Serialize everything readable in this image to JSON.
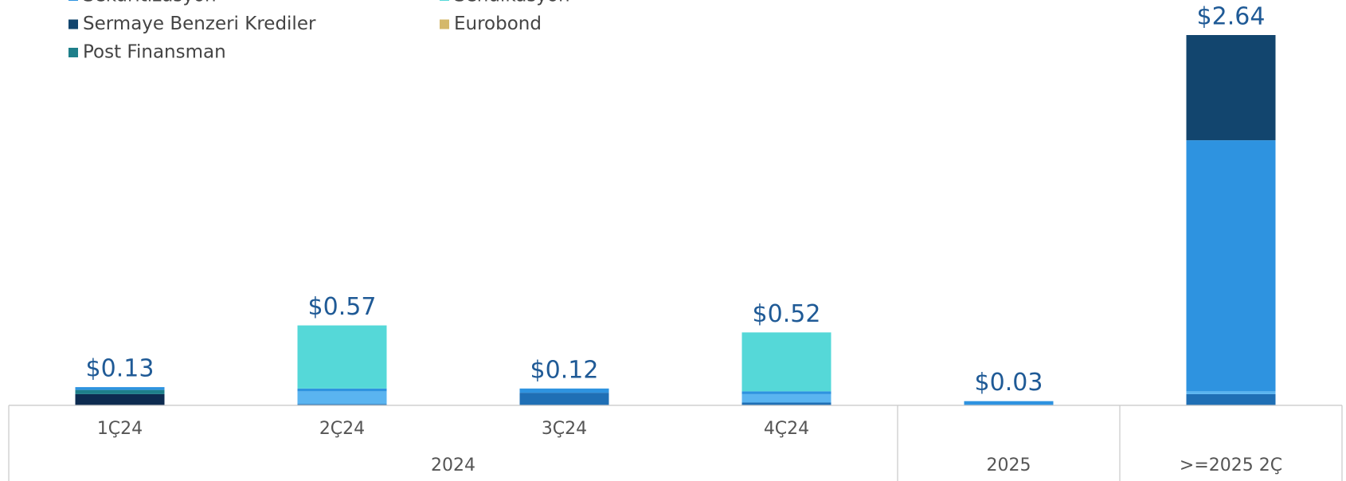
{
  "chart_data": {
    "type": "stacked_bar",
    "categories": [
      "1Ç24",
      "2Ç24",
      "3Ç24",
      "4Ç24",
      null,
      null
    ],
    "groups": [
      {
        "label": "2024",
        "span": 4
      },
      {
        "label": "2025",
        "span": 1
      },
      {
        "label": ">=2025 2Ç",
        "span": 1
      }
    ],
    "series": [
      {
        "color": "#1f6fb5",
        "values": [
          0,
          0.01,
          0.09,
          0.02,
          0,
          0.08
        ]
      },
      {
        "color": "#0d2b50",
        "values": [
          0.08,
          0,
          0,
          0,
          0,
          0
        ]
      },
      {
        "color": "#5ab4f0",
        "values": [
          0,
          0.09,
          0,
          0.06,
          0,
          0.02
        ]
      },
      {
        "name": "Post Finansman",
        "color": "#1e7f8a",
        "values": [
          0.03,
          0,
          0,
          0,
          0,
          0
        ]
      },
      {
        "name": "Sekuritizasyon",
        "color": "#2e93e0",
        "values": [
          0.02,
          0.02,
          0.03,
          0.02,
          0.03,
          1.79
        ]
      },
      {
        "name": "Sendikasyon",
        "color": "#55d8d8",
        "values": [
          0,
          0.45,
          0,
          0.42,
          0,
          0
        ]
      },
      {
        "name": "Sermaye Benzeri Krediler",
        "color": "#12456e",
        "values": [
          0,
          0,
          0,
          0,
          0,
          0.75
        ]
      },
      {
        "name": "Eurobond",
        "color": "#d4b86a",
        "values": [
          0,
          0,
          0,
          0,
          0,
          0
        ]
      }
    ],
    "totals": [
      0.13,
      0.57,
      0.12,
      0.52,
      0.03,
      2.64
    ],
    "total_labels": [
      "$0.13",
      "$0.57",
      "$0.12",
      "$0.52",
      "$0.03",
      "$2.64"
    ],
    "ylim": [
      0,
      2.64
    ]
  }
}
